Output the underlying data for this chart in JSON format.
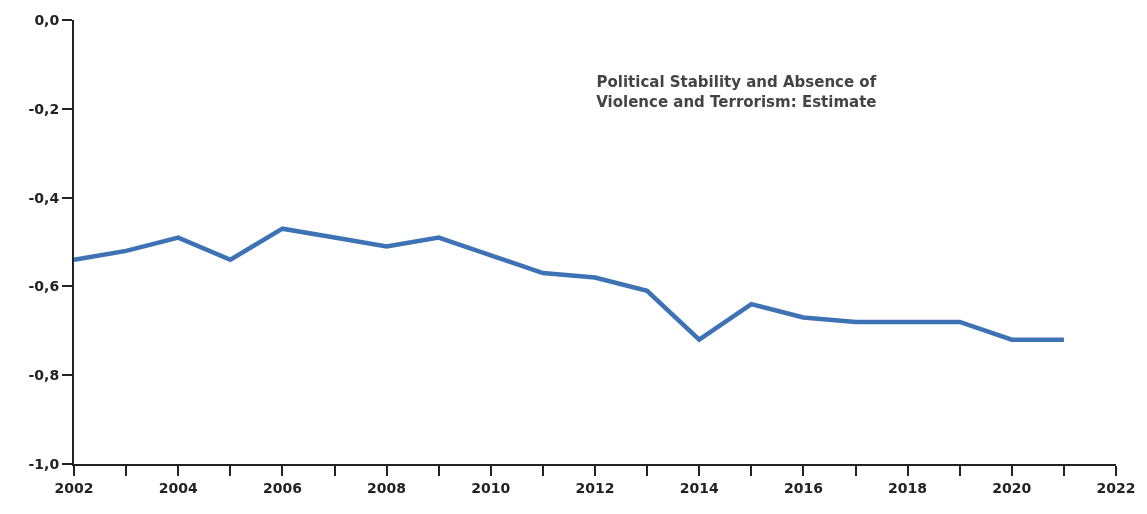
{
  "chart_data": {
    "type": "line",
    "title": "Political Stability and Absence of\nViolence and Terrorism: Estimate",
    "x": [
      2002,
      2003,
      2004,
      2005,
      2006,
      2007,
      2008,
      2009,
      2010,
      2011,
      2012,
      2013,
      2014,
      2015,
      2016,
      2017,
      2018,
      2019,
      2020,
      2021
    ],
    "series": [
      {
        "color": "#3d72b4",
        "values": [
          -0.54,
          -0.52,
          -0.49,
          -0.54,
          -0.47,
          -0.49,
          -0.51,
          -0.49,
          -0.53,
          -0.57,
          -0.58,
          -0.61,
          -0.72,
          -0.64,
          -0.67,
          -0.68,
          -0.68,
          -0.68,
          -0.72,
          -0.72
        ]
      }
    ],
    "xlim": [
      2002,
      2022
    ],
    "xticks": [
      2002,
      {
        "value": 2003,
        "label": null
      },
      2004,
      {
        "value": 2005,
        "label": null
      },
      2006,
      {
        "value": 2007,
        "label": null
      },
      2008,
      {
        "value": 2009,
        "label": null
      },
      2010,
      {
        "value": 2011,
        "label": null
      },
      2012,
      {
        "value": 2013,
        "label": null
      },
      2014,
      {
        "value": 2015,
        "label": null
      },
      2016,
      {
        "value": 2017,
        "label": null
      },
      2018,
      {
        "value": 2019,
        "label": null
      },
      2020,
      {
        "value": 2021,
        "label": null
      },
      2022
    ],
    "ylim": [
      -1.0,
      0.0
    ],
    "yticks": [
      {
        "value": 0.0,
        "label": "0,0"
      },
      {
        "value": -0.2,
        "label": "-0,2"
      },
      {
        "value": -0.4,
        "label": "-0,4"
      },
      {
        "value": -0.6,
        "label": "-0,6"
      },
      {
        "value": -0.8,
        "label": "-0,8"
      },
      {
        "value": -1.0,
        "label": "-1,0"
      }
    ],
    "marker": "none",
    "line_style": "solid"
  }
}
